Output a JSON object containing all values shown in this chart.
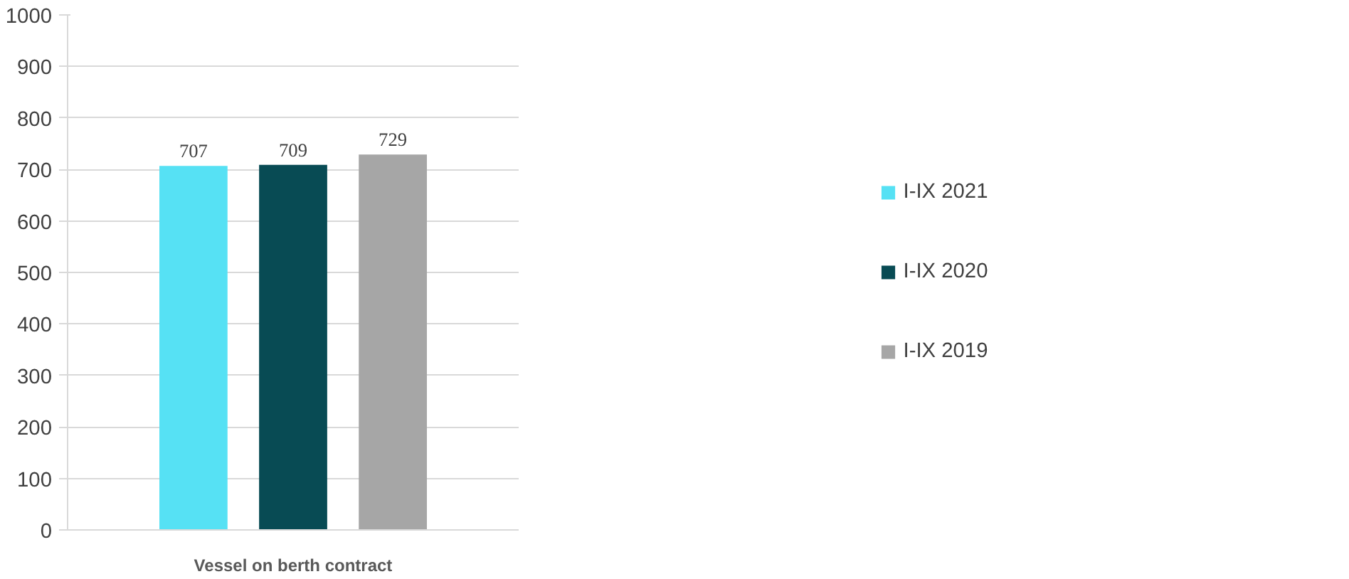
{
  "chart_data": {
    "type": "bar",
    "categories": [
      "Vessel on berth contract"
    ],
    "series": [
      {
        "name": "I-IX 2021",
        "color": "#56e1f4",
        "values": [
          707
        ]
      },
      {
        "name": "I-IX 2020",
        "color": "#084b54",
        "values": [
          709
        ]
      },
      {
        "name": "I-IX 2019",
        "color": "#a6a6a6",
        "values": [
          729
        ]
      }
    ],
    "ylim": [
      0,
      1000
    ],
    "yticks": [
      0,
      100,
      200,
      300,
      400,
      500,
      600,
      700,
      800,
      900,
      1000
    ],
    "grid": "y",
    "legend": "right",
    "data_labels": true
  }
}
